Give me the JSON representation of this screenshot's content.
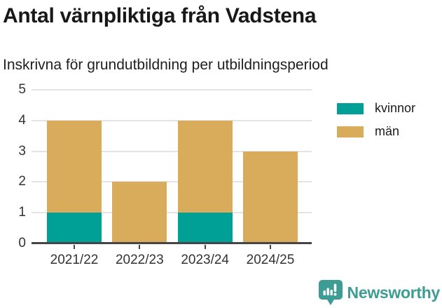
{
  "header": {
    "title": "Antal värnpliktiga från Vadstena",
    "subtitle": "Inskrivna för grundutbildning per utbildningsperiod"
  },
  "chart_data": {
    "type": "bar",
    "stacked": true,
    "title": "Antal värnpliktiga från Vadstena",
    "subtitle": "Inskrivna för grundutbildning per utbildningsperiod",
    "categories": [
      "2021/22",
      "2022/23",
      "2023/24",
      "2024/25"
    ],
    "series": [
      {
        "name": "kvinnor",
        "color": "#00A096",
        "values": [
          1,
          0,
          1,
          0
        ]
      },
      {
        "name": "män",
        "color": "#D9AC5C",
        "values": [
          3,
          2,
          3,
          3
        ]
      }
    ],
    "xlabel": "",
    "ylabel": "",
    "ylim": [
      0,
      5
    ],
    "yticks": [
      0,
      1,
      2,
      3,
      4,
      5
    ],
    "grid": true,
    "legend_position": "top-right",
    "grid_color": "#E4E4E4",
    "axis_color": "#454545",
    "label_color": "#333333"
  },
  "footer": {
    "brand": "Newsworthy",
    "brand_color": "#3D9C93"
  }
}
